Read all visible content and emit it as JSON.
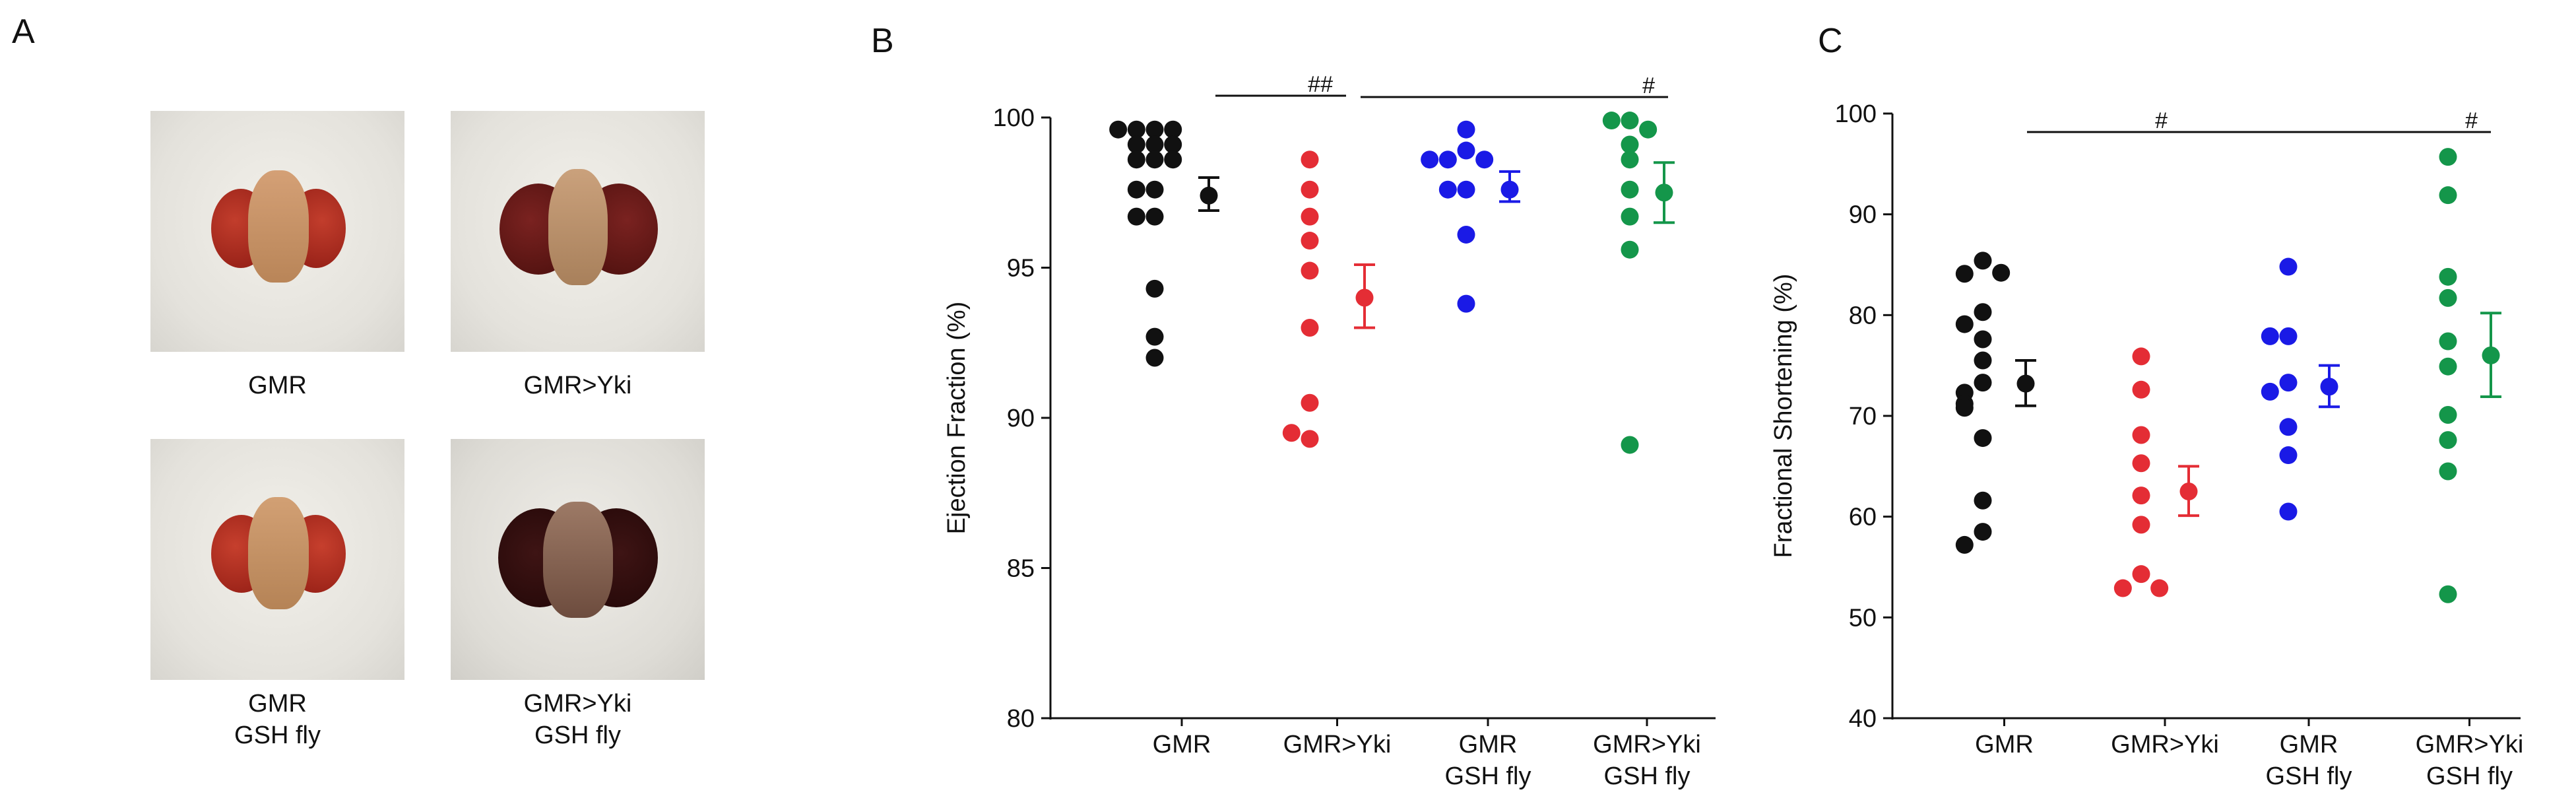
{
  "panels": {
    "a": {
      "letter": "A",
      "photos": [
        {
          "label_line1": "GMR",
          "label_line2": ""
        },
        {
          "label_line1": "GMR>Yki",
          "label_line2": ""
        },
        {
          "label_line1": "GMR",
          "label_line2": "GSH fly"
        },
        {
          "label_line1": "GMR>Yki",
          "label_line2": "GSH fly"
        }
      ]
    },
    "b": {
      "letter": "B"
    },
    "c": {
      "letter": "C"
    }
  },
  "colors": {
    "GMR": "#111111",
    "GMR>Yki": "#e42d35",
    "GMR GSH fly": "#1a1ae6",
    "GMR>Yki GSH fly": "#14964a"
  },
  "chart_data": [
    {
      "type": "scatter",
      "title": "",
      "xlabel": "",
      "ylabel": "Ejection Fraction (%)",
      "ylim": [
        80,
        100
      ],
      "yticks": [
        "80",
        "85",
        "90",
        "95",
        "100"
      ],
      "categories": [
        {
          "line1": "GMR",
          "line2": ""
        },
        {
          "line1": "GMR>Yki",
          "line2": ""
        },
        {
          "line1": "GMR",
          "line2": "GSH fly"
        },
        {
          "line1": "GMR>Yki",
          "line2": "GSH fly"
        }
      ],
      "series": [
        {
          "name": "GMR",
          "color": "#111111",
          "values": [
            99.6,
            99.6,
            99.6,
            99.6,
            99.1,
            99.1,
            99.1,
            98.6,
            98.6,
            98.6,
            97.6,
            97.6,
            96.7,
            96.7,
            94.3,
            92.7,
            92.0
          ],
          "mean": 97.4,
          "err_low": 96.9,
          "err_high": 98.0
        },
        {
          "name": "GMR>Yki",
          "color": "#e42d35",
          "values": [
            98.6,
            97.6,
            96.7,
            95.9,
            94.9,
            93.0,
            90.5,
            89.3,
            89.5
          ],
          "mean": 94.0,
          "err_low": 93.0,
          "err_high": 95.1
        },
        {
          "name": "GMR GSH fly",
          "color": "#1a1ae6",
          "values": [
            99.6,
            98.9,
            98.6,
            98.6,
            98.6,
            97.6,
            97.6,
            96.1,
            93.8
          ],
          "mean": 97.6,
          "err_low": 97.2,
          "err_high": 98.2
        },
        {
          "name": "GMR>Yki GSH fly",
          "color": "#14964a",
          "values": [
            99.9,
            99.9,
            99.6,
            99.1,
            98.6,
            97.6,
            96.7,
            95.6,
            89.1
          ],
          "mean": 97.5,
          "err_low": 96.5,
          "err_high": 98.5
        }
      ],
      "significance": [
        {
          "label": "##",
          "from_group": 2,
          "to_group": 2
        },
        {
          "label": "#",
          "from_group": 2,
          "to_group": 4
        }
      ]
    },
    {
      "type": "scatter",
      "title": "",
      "xlabel": "",
      "ylabel": "Fractional Shortening (%)",
      "ylim": [
        40,
        100
      ],
      "yticks": [
        "40",
        "50",
        "60",
        "70",
        "80",
        "90",
        "100"
      ],
      "categories": [
        {
          "line1": "GMR",
          "line2": ""
        },
        {
          "line1": "GMR>Yki",
          "line2": ""
        },
        {
          "line1": "GMR",
          "line2": "GSH fly"
        },
        {
          "line1": "GMR>Yki",
          "line2": "GSH fly"
        }
      ],
      "series": [
        {
          "name": "GMR",
          "color": "#111111",
          "values": [
            85.4,
            84.1,
            84.2,
            80.3,
            79.1,
            77.6,
            75.5,
            73.3,
            72.3,
            71.2,
            70.8,
            67.8,
            61.6,
            58.5,
            57.2
          ],
          "mean": 73.2,
          "err_low": 71.0,
          "err_high": 75.5
        },
        {
          "name": "GMR>Yki",
          "color": "#e42d35",
          "values": [
            75.9,
            72.6,
            68.1,
            65.3,
            62.1,
            59.2,
            54.3,
            52.9,
            52.9
          ],
          "mean": 62.5,
          "err_low": 60.1,
          "err_high": 65.0
        },
        {
          "name": "GMR GSH fly",
          "color": "#1a1ae6",
          "values": [
            84.8,
            77.9,
            77.9,
            73.3,
            72.4,
            68.9,
            66.1,
            60.5
          ],
          "mean": 72.9,
          "err_low": 70.9,
          "err_high": 75.0
        },
        {
          "name": "GMR>Yki GSH fly",
          "color": "#14964a",
          "values": [
            95.7,
            91.9,
            83.8,
            81.7,
            77.4,
            74.9,
            70.1,
            67.6,
            64.5,
            52.3
          ],
          "mean": 76.0,
          "err_low": 71.9,
          "err_high": 80.2
        }
      ],
      "significance": [
        {
          "label": "#",
          "from_group": 2,
          "to_group": 2
        },
        {
          "label": "#",
          "from_group": 2,
          "to_group": 4
        }
      ]
    }
  ]
}
